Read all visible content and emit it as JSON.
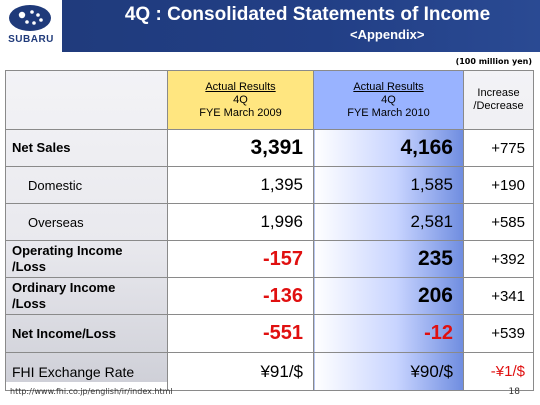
{
  "header": {
    "logo_text": "SUBARU",
    "title": "4Q : Consolidated Statements of Income",
    "subtitle": "<Appendix>"
  },
  "units": "(100 million yen)",
  "table": {
    "columns": [
      {
        "line1": "Actual Results",
        "line2": "4Q",
        "line3": "FYE March 2009"
      },
      {
        "line1": "Actual Results",
        "line2": "4Q",
        "line3": "FYE March 2010"
      },
      {
        "line1": "Increase",
        "line2": "/Decrease"
      }
    ],
    "rows": [
      {
        "label": "Net Sales",
        "fy2009": "3,391",
        "fy2010": "4,166",
        "change": "+775"
      },
      {
        "label": "Domestic",
        "fy2009": "1,395",
        "fy2010": "1,585",
        "change": "+190"
      },
      {
        "label": "Overseas",
        "fy2009": "1,996",
        "fy2010": "2,581",
        "change": "+585"
      },
      {
        "label_line1": "Operating Income",
        "label_line2": "/Loss",
        "fy2009": "-157",
        "fy2010": "235",
        "change": "+392"
      },
      {
        "label_line1": "Ordinary Income",
        "label_line2": "/Loss",
        "fy2009": "-136",
        "fy2010": "206",
        "change": "+341"
      },
      {
        "label": "Net Income/Loss",
        "fy2009": "-551",
        "fy2010": "-12",
        "change": "+539"
      },
      {
        "label": "FHI Exchange Rate",
        "fy2009": "¥91/$",
        "fy2010": "¥90/$",
        "change": "-¥1/$"
      }
    ]
  },
  "footer": {
    "url": "http://www.fhi.co.jp/english/ir/index.html",
    "page": "18"
  },
  "colors": {
    "header_bg": "#1f3a7a",
    "col2009_header": "#ffe680",
    "col2010_header": "#99b3ff",
    "negative": "#e01010"
  }
}
